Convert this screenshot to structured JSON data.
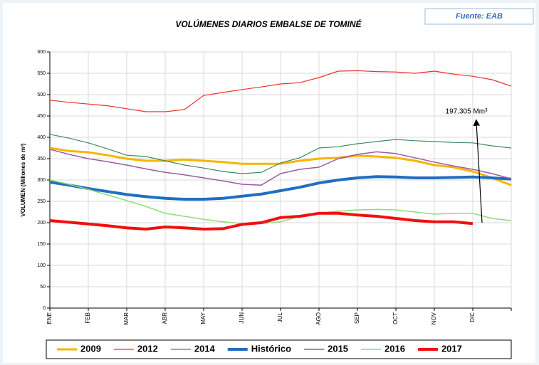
{
  "chart_data": {
    "type": "line",
    "title": "VOLÚMENES DIARIOS EMBALSE DE TOMINÉ",
    "source": "Fuente: EAB",
    "y_label": "VOLUMEN (Millones de m³)",
    "annotation": "197.305 Mm³",
    "categories": [
      "ENE",
      null,
      "FEB",
      null,
      "MAR",
      null,
      "ABR",
      null,
      "MAY",
      null,
      "JUN",
      null,
      "JUL",
      null,
      "AGO",
      null,
      "SEP",
      null,
      "OCT",
      null,
      "NOV",
      null,
      "DIC",
      null,
      null
    ],
    "ylim": [
      0,
      600
    ],
    "yticks": [
      0,
      50,
      100,
      150,
      200,
      250,
      300,
      350,
      400,
      450,
      500,
      550,
      600
    ],
    "grid": true,
    "legend": "bottom",
    "series": [
      {
        "name": "2009",
        "color": "#f7b500",
        "width": 3,
        "values": [
          375,
          368,
          365,
          358,
          350,
          345,
          345,
          348,
          345,
          342,
          338,
          338,
          338,
          345,
          350,
          352,
          357,
          355,
          352,
          345,
          335,
          330,
          320,
          305,
          288
        ]
      },
      {
        "name": "2012",
        "color": "#f0302a",
        "width": 1.2,
        "values": [
          487,
          482,
          478,
          474,
          467,
          460,
          460,
          465,
          498,
          505,
          512,
          518,
          525,
          528,
          540,
          555,
          556,
          554,
          553,
          550,
          555,
          548,
          543,
          535,
          520
        ]
      },
      {
        "name": "2014",
        "color": "#3f8a5c",
        "width": 1.2,
        "values": [
          407,
          398,
          387,
          373,
          358,
          355,
          345,
          335,
          328,
          320,
          315,
          318,
          340,
          352,
          375,
          378,
          385,
          390,
          395,
          392,
          390,
          388,
          387,
          380,
          375
        ]
      },
      {
        "name": "Histórico",
        "color": "#1f6fc0",
        "width": 4,
        "values": [
          295,
          288,
          280,
          273,
          266,
          261,
          257,
          255,
          255,
          257,
          262,
          267,
          275,
          283,
          293,
          300,
          305,
          308,
          307,
          305,
          305,
          306,
          307,
          305,
          302
        ]
      },
      {
        "name": "2015",
        "color": "#9b5aa6",
        "width": 1.5,
        "values": [
          372,
          360,
          350,
          343,
          335,
          326,
          318,
          312,
          305,
          298,
          290,
          288,
          315,
          325,
          330,
          350,
          360,
          366,
          362,
          352,
          342,
          333,
          325,
          315,
          303
        ]
      },
      {
        "name": "2016",
        "color": "#8fda78",
        "width": 1.5,
        "values": [
          300,
          290,
          278,
          265,
          252,
          238,
          222,
          215,
          208,
          202,
          198,
          198,
          202,
          215,
          222,
          227,
          230,
          231,
          230,
          225,
          220,
          222,
          222,
          210,
          205
        ]
      },
      {
        "name": "2017",
        "color": "#f01010",
        "width": 4,
        "values": [
          205,
          201,
          197,
          193,
          188,
          185,
          190,
          188,
          185,
          186,
          196,
          200,
          212,
          215,
          222,
          222,
          218,
          215,
          210,
          205,
          202,
          202,
          198,
          null,
          null
        ]
      }
    ]
  }
}
